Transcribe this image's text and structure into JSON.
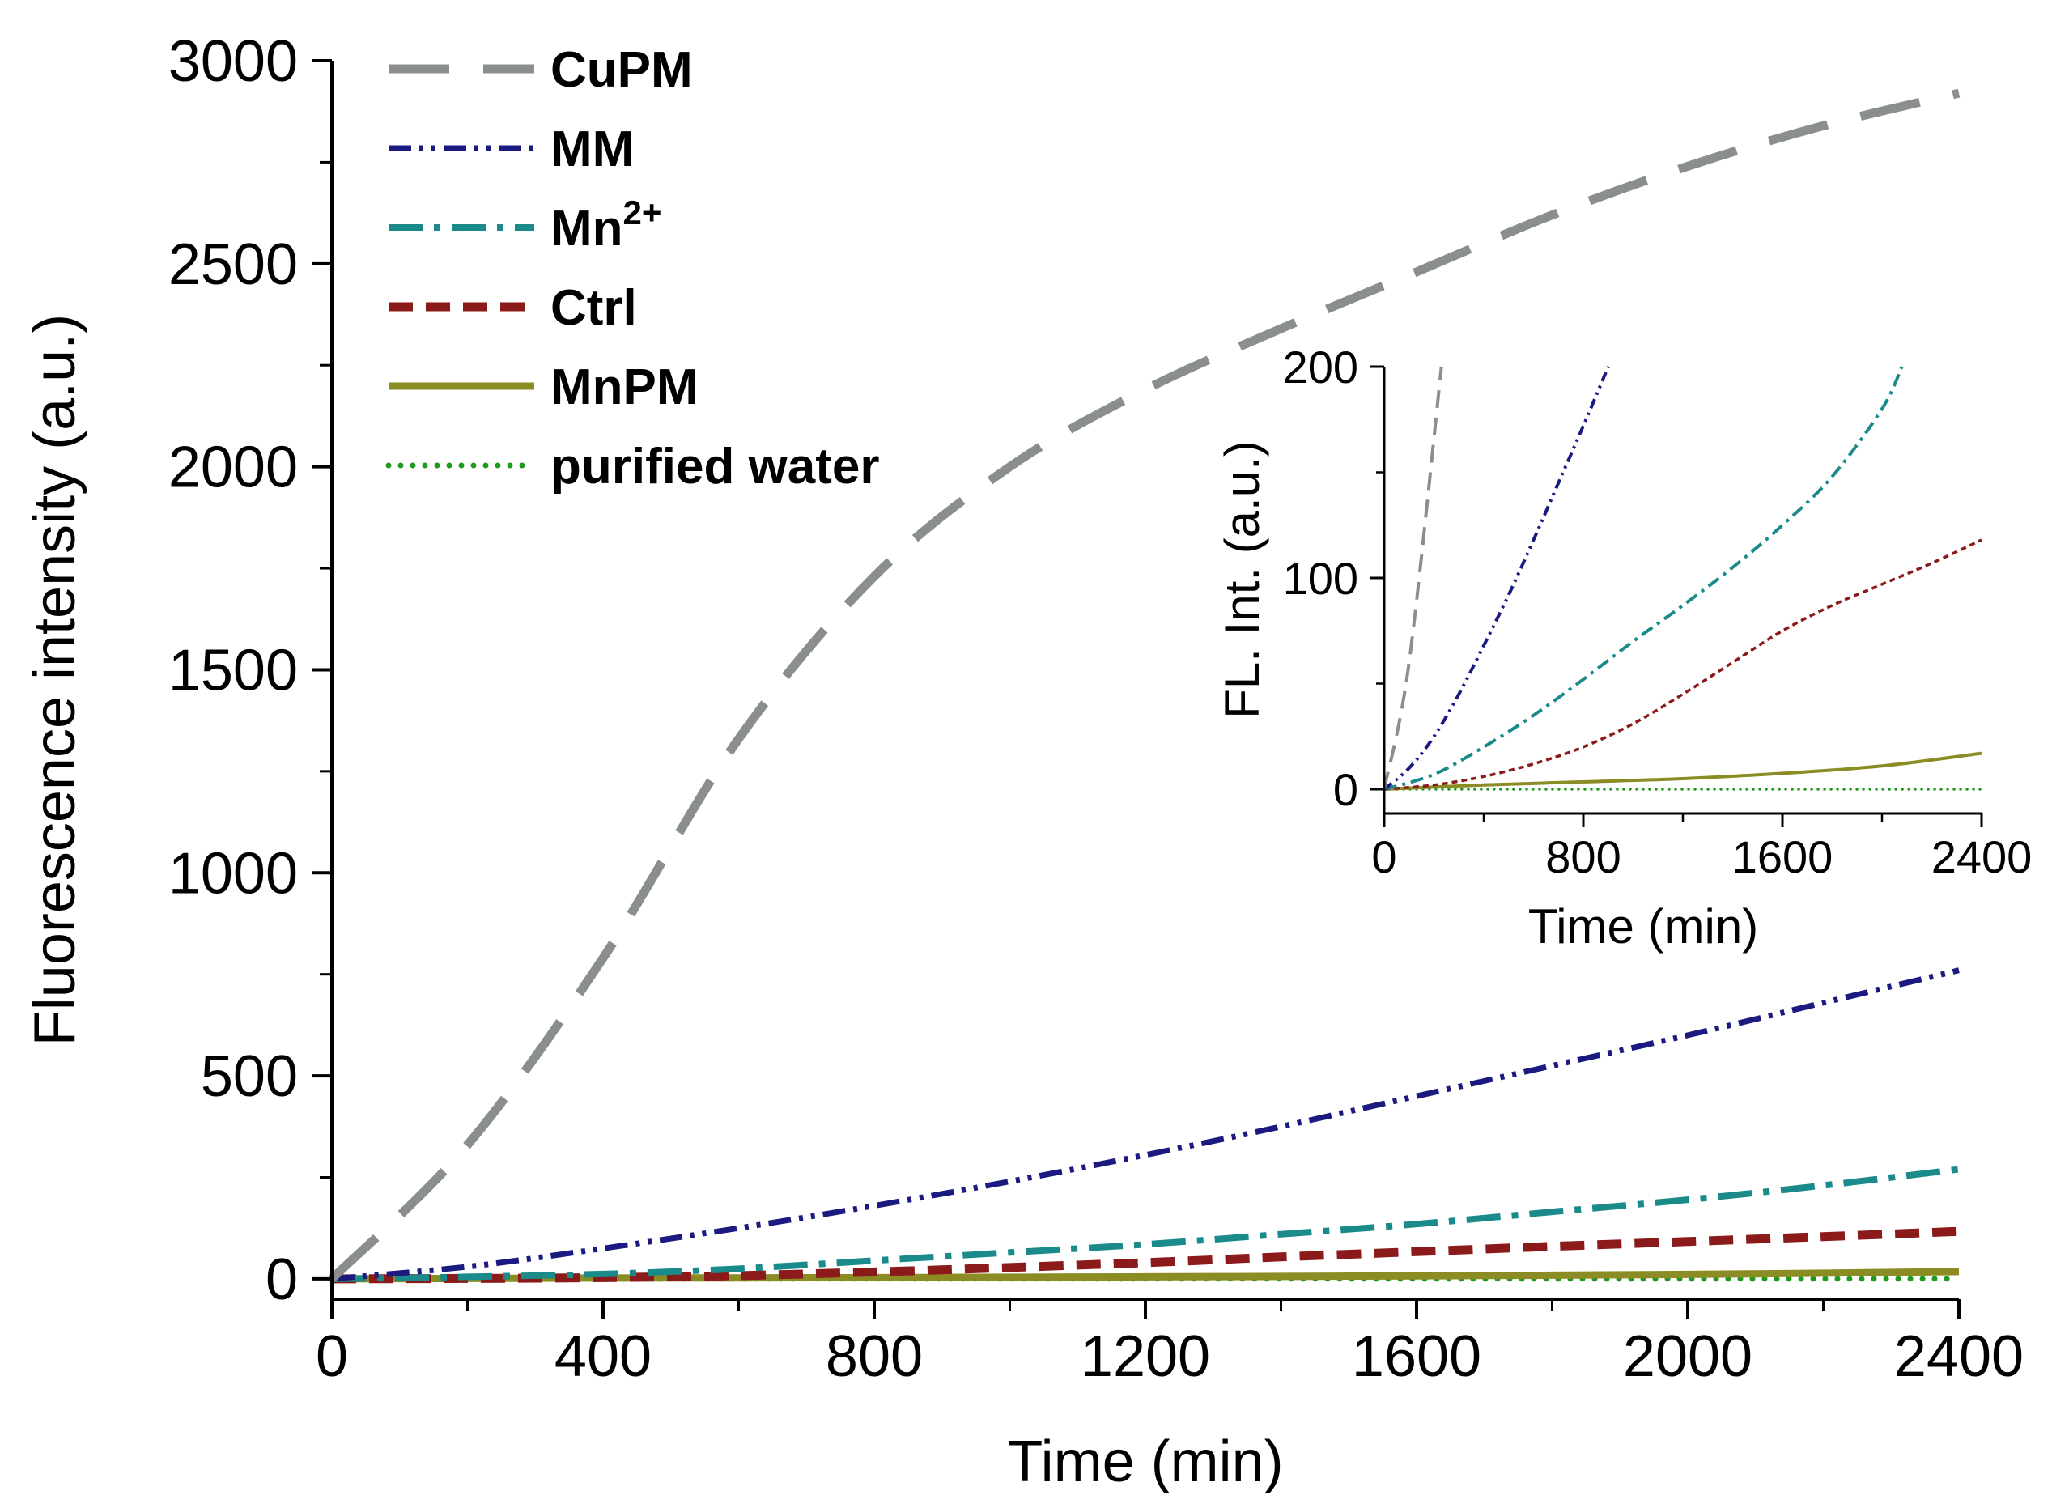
{
  "chart_data": [
    {
      "type": "line",
      "panel": "main",
      "title": "",
      "xlabel": "Time (min)",
      "ylabel": "Fluorescence intensity (a.u.)",
      "xlim": [
        0,
        2400
      ],
      "ylim": [
        -50,
        3000
      ],
      "xticks": [
        "0",
        "400",
        "800",
        "1200",
        "1600",
        "2000",
        "2400"
      ],
      "yticks": [
        "0",
        "500",
        "1000",
        "1500",
        "2000",
        "2500",
        "3000"
      ],
      "grid": false,
      "legend_position": "top-left",
      "x": [
        0,
        200,
        400,
        600,
        800,
        1000,
        1200,
        1400,
        1600,
        1800,
        2000,
        2200,
        2400
      ],
      "series": [
        {
          "name": "CuPM",
          "name_base": "CuPM",
          "name_sup": "",
          "color": "#8a8f8c",
          "dash": "long-dash",
          "values": [
            0,
            330,
            790,
            1330,
            1730,
            2000,
            2190,
            2340,
            2480,
            2620,
            2740,
            2840,
            2920
          ]
        },
        {
          "name": "MM",
          "name_base": "MM",
          "name_sup": "",
          "color": "#1a1a80",
          "dash": "dash-dot-dot",
          "values": [
            0,
            30,
            75,
            125,
            180,
            240,
            305,
            375,
            450,
            525,
            600,
            680,
            760
          ]
        },
        {
          "name": "Mn2+",
          "name_base": "Mn",
          "name_sup": "2+",
          "color": "#1a8a8a",
          "dash": "dash-dot",
          "values": [
            0,
            5,
            12,
            25,
            45,
            65,
            85,
            110,
            135,
            165,
            195,
            230,
            270
          ]
        },
        {
          "name": "Ctrl",
          "name_base": "Ctrl",
          "name_sup": "",
          "color": "#8b1a1a",
          "dash": "short-dash",
          "values": [
            0,
            1,
            3,
            8,
            17,
            28,
            40,
            54,
            67,
            80,
            92,
            104,
            117
          ]
        },
        {
          "name": "MnPM",
          "name_base": "MnPM",
          "name_sup": "",
          "color": "#8c8c24",
          "dash": "solid",
          "values": [
            0,
            1,
            2,
            2.5,
            3,
            4,
            5,
            6,
            7.5,
            9,
            11,
            14,
            18
          ]
        },
        {
          "name": "purified water",
          "name_base": "purified water",
          "name_sup": "",
          "color": "#1f9a1f",
          "dash": "dotted",
          "values": [
            0,
            0,
            0,
            0,
            0,
            0,
            0,
            0,
            0,
            0,
            0,
            0,
            0
          ]
        }
      ]
    },
    {
      "type": "line",
      "panel": "inset",
      "title": "",
      "xlabel": "Time (min)",
      "ylabel": "FL. Int. (a.u.)",
      "xlim": [
        0,
        2400
      ],
      "ylim": [
        0,
        200
      ],
      "xticks": [
        "0",
        "800",
        "1600",
        "2400"
      ],
      "yticks": [
        "0",
        "100",
        "200"
      ],
      "grid": false,
      "series": [
        {
          "name": "CuPM",
          "x": [
            0,
            100,
            230
          ],
          "values": [
            0,
            60,
            200
          ]
        },
        {
          "name": "MM",
          "x": [
            0,
            100,
            200,
            300,
            400,
            500,
            600,
            700,
            800,
            900
          ],
          "values": [
            0,
            10,
            25,
            45,
            68,
            92,
            118,
            145,
            172,
            200
          ]
        },
        {
          "name": "Mn2+",
          "x": [
            0,
            200,
            400,
            600,
            800,
            1000,
            1200,
            1400,
            1600,
            1800,
            2000,
            2080
          ],
          "values": [
            0,
            7,
            20,
            35,
            52,
            70,
            87,
            105,
            125,
            148,
            180,
            200
          ]
        },
        {
          "name": "Ctrl",
          "x": [
            0,
            200,
            400,
            600,
            800,
            1000,
            1200,
            1400,
            1600,
            1800,
            2000,
            2200,
            2400
          ],
          "values": [
            0,
            2,
            6,
            12,
            20,
            31,
            45,
            60,
            75,
            87,
            97,
            107,
            118
          ]
        },
        {
          "name": "MnPM",
          "x": [
            0,
            400,
            800,
            1200,
            1600,
            2000,
            2400
          ],
          "values": [
            0,
            2,
            3.5,
            5,
            7.5,
            11,
            17
          ]
        },
        {
          "name": "purified water",
          "x": [
            0,
            2400
          ],
          "values": [
            0,
            0
          ]
        }
      ]
    }
  ]
}
